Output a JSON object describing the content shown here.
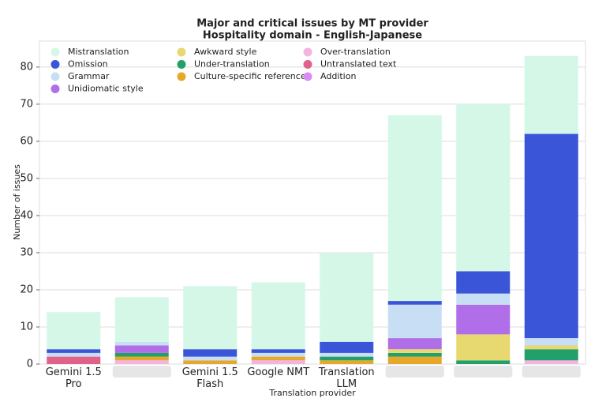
{
  "chart_data": {
    "type": "stacked_bar",
    "title": "Major and critical issues by MT provider",
    "subtitle": "Hospitality domain - English-Japanese",
    "x_label": "Translation provider",
    "y_label": "Number of issues",
    "categories": [
      "Gemini 1.5 Pro",
      null,
      "Gemini 1.5 Flash",
      "Google NMT",
      "Translation LLM",
      null,
      null,
      null
    ],
    "series": [
      {
        "name": "Mistranslation",
        "color": "#d4f7e8",
        "values": [
          10,
          12,
          17,
          18,
          24,
          50,
          45,
          21
        ]
      },
      {
        "name": "Omission",
        "color": "#3a55d8",
        "values": [
          1,
          0,
          2,
          1,
          3,
          1,
          6,
          55
        ]
      },
      {
        "name": "Grammar",
        "color": "#c8def5",
        "values": [
          1,
          1,
          1,
          1,
          1,
          9,
          3,
          2
        ]
      },
      {
        "name": "Unidiomatic style",
        "color": "#b06ee8",
        "values": [
          0,
          2,
          0,
          0,
          0,
          3,
          8,
          0
        ]
      },
      {
        "name": "Awkward style",
        "color": "#e8d870",
        "values": [
          0,
          0,
          0,
          0,
          0,
          1,
          7,
          1
        ]
      },
      {
        "name": "Under-translation",
        "color": "#23a06a",
        "values": [
          0,
          1,
          0,
          0,
          1,
          1,
          1,
          3
        ]
      },
      {
        "name": "Culture-specific reference",
        "color": "#e5a82a",
        "values": [
          0,
          1,
          1,
          1,
          1,
          2,
          0,
          0
        ]
      },
      {
        "name": "Over-translation",
        "color": "#f4b3e0",
        "values": [
          0,
          1,
          0,
          1,
          0,
          0,
          0,
          1
        ]
      },
      {
        "name": "Untranslated text",
        "color": "#e0628a",
        "values": [
          2,
          0,
          0,
          0,
          0,
          0,
          0,
          0
        ]
      },
      {
        "name": "Addition",
        "color": "#d88ef0",
        "values": [
          0,
          0,
          0,
          0,
          0,
          0,
          0,
          0
        ]
      }
    ],
    "ylim": [
      0,
      87
    ],
    "yticks": [
      0,
      10,
      20,
      30,
      40,
      50,
      60,
      70,
      80
    ],
    "grid": true
  }
}
